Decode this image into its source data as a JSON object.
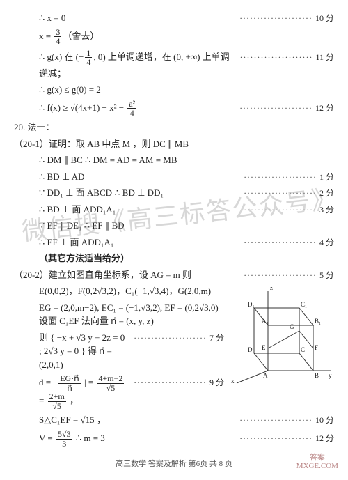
{
  "lines": [
    {
      "left": "∴ x = 0",
      "right": "10 分",
      "indent": 2
    },
    {
      "left": "x = FRAC(3|4)（舍去）",
      "right": "",
      "indent": 2
    },
    {
      "left": "∴ g(x) 在 (−FRAC(1|4), 0) 上单调递增，在 (0, +∞) 上单调递减；",
      "right": "11 分",
      "indent": 2
    },
    {
      "left": "∴ g(x) ≤ g(0) = 2",
      "right": "",
      "indent": 2
    },
    {
      "left": "∴ f(x) ≥ √(4x+1) − x² − FRAC(a²|4)",
      "right": "12 分",
      "indent": 2
    },
    {
      "left": "20. 法一：",
      "right": "",
      "indent": 0
    },
    {
      "left": "（20-1）证明：取 AB 中点 M ，则 DC ∥ MB",
      "right": "",
      "indent": 0,
      "under": "DC"
    },
    {
      "left": "∴ DM ∥ BC  ∴ DM = AD = AM = MB",
      "right": "",
      "indent": 2,
      "under": "DM"
    },
    {
      "left": "∴ BD ⊥ AD",
      "right": "1 分",
      "indent": 2
    },
    {
      "left": "∵ DD₁ ⊥ 面 ABCD  ∴ BD ⊥ DD₁",
      "right": "2 分",
      "indent": 2
    },
    {
      "left": "∴ BD ⊥ 面 ADD₁A₁",
      "right": "3 分",
      "indent": 2
    },
    {
      "left": "∵ EF ∥ DE₁  ∴ EF ∥ BD",
      "right": "",
      "indent": 2
    },
    {
      "left": "∴ EF ⊥ 面 ADD₁A₁",
      "right": "4 分",
      "indent": 2
    },
    {
      "left": "（其它方法适当给分）",
      "right": "",
      "indent": 2,
      "bold": true
    },
    {
      "left": "（20-2）建立如图直角坐标系，设 AG = m 则",
      "right": "5 分",
      "indent": 0
    },
    {
      "left": "E(0,0,2)，F(0,2√3,2)，C₁(−1,√3,4)，G(2,0,m)",
      "right": "",
      "indent": 2
    },
    {
      "left": "OV(EG) = (2,0,m−2), OV(EC₁) = (−1,√3,2), OV(EF) = (0,2√3,0) 设面 C₁EF 法向量 n⃗ = (x, y, z)",
      "right": "",
      "indent": 2
    },
    {
      "left": "则 { −x + √3 y + 2z = 0 ; 2√3 y = 0 } 得 n⃗ = (2,0,1)",
      "right": "7 分",
      "indent": 2
    },
    {
      "left": "d = | FRAC(OV(EG)·n⃗|n⃗) | = FRAC(4+m−2|√5) = FRAC(2+m|√5) ，",
      "right": "9 分",
      "indent": 2
    },
    {
      "left": "S△C₁EF = √15 ，",
      "right": "10 分",
      "indent": 2
    },
    {
      "left": "V = FRAC(5√3|3)  ∴ m = 3",
      "right": "12 分",
      "indent": 2
    }
  ],
  "watermark": "微信搜《高三标答公众号》",
  "footer": "高三数学  答案及解析  第6页  共 8 页",
  "stamp": {
    "l1": "答案",
    "l2": "MXGE.COM"
  },
  "diagram": {
    "labels": {
      "A": "A",
      "B": "B",
      "C": "C",
      "D": "D",
      "A1": "A₁",
      "B1": "B₁",
      "C1": "C₁",
      "D1": "D₁",
      "E": "E",
      "F": "F",
      "G": "G",
      "x": "x",
      "y": "y",
      "z": "z"
    },
    "stroke": "#333",
    "width": 150,
    "height": 140
  }
}
